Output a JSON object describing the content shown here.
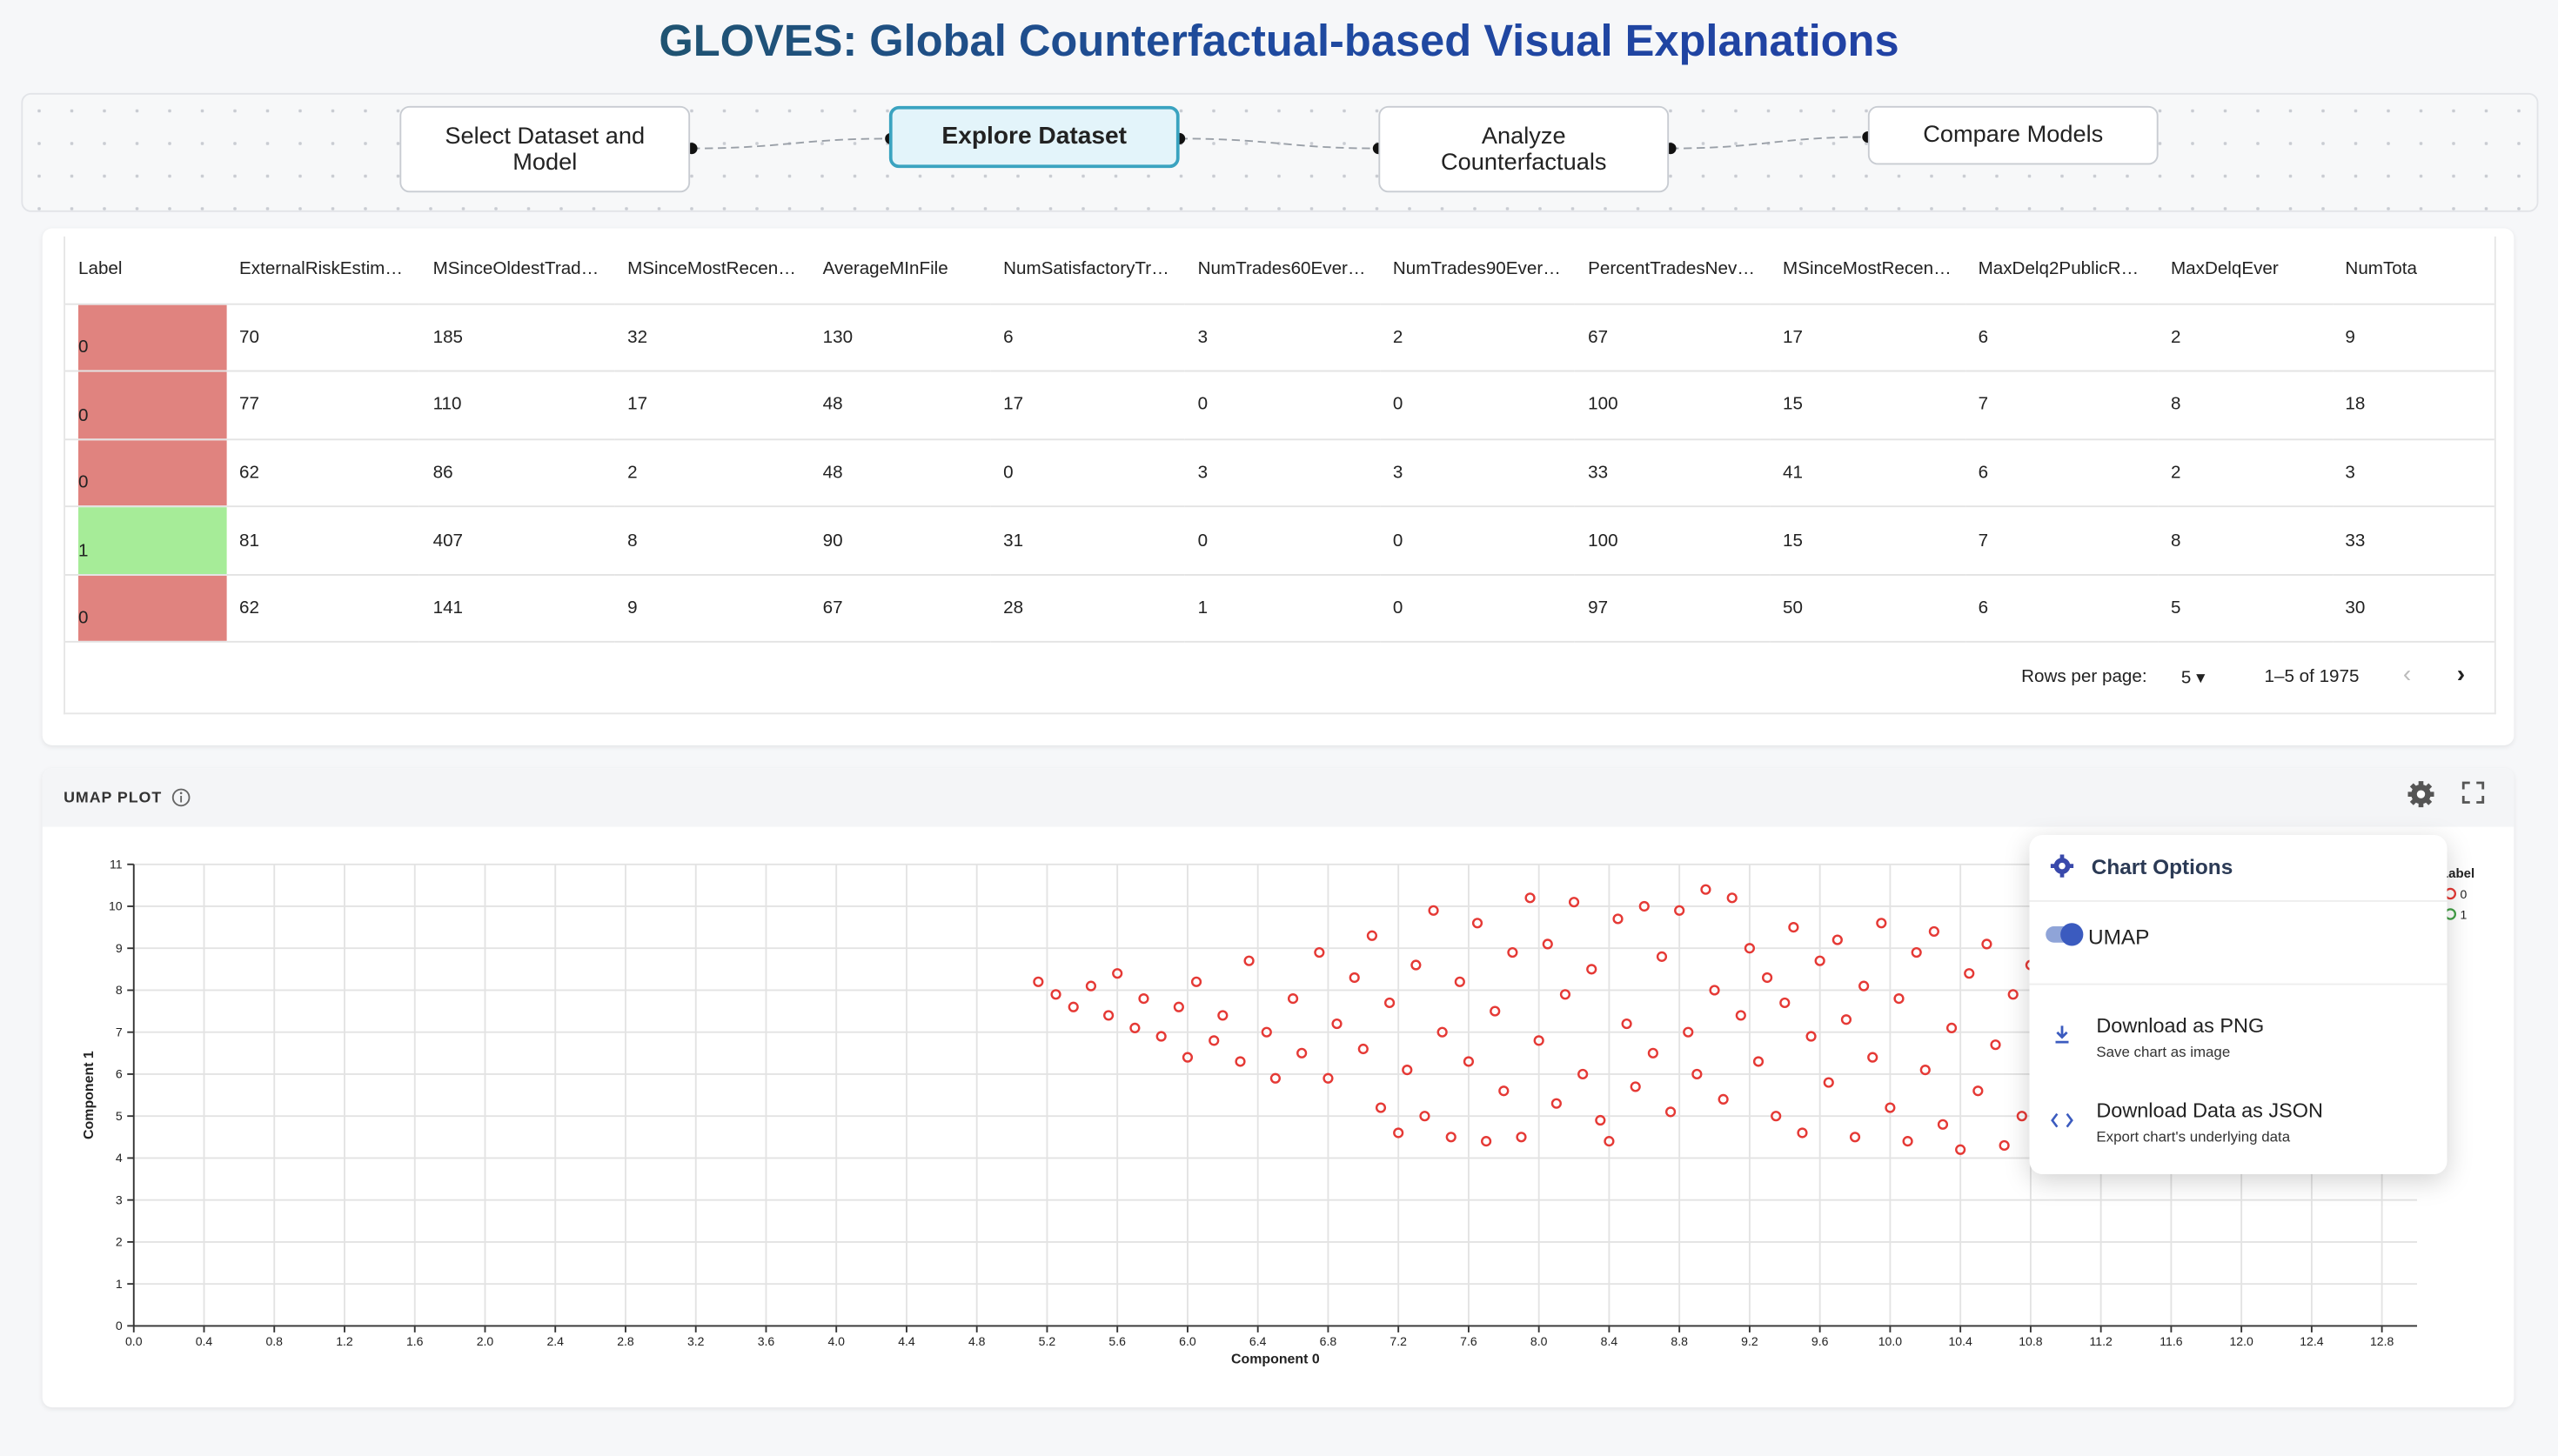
{
  "header": {
    "title": "GLOVES: Global Counterfactual-based Visual Explanations"
  },
  "steps": [
    "Select Dataset and Model",
    "Explore Dataset",
    "Analyze Counterfactuals",
    "Compare Models"
  ],
  "table": {
    "columns": [
      "Label",
      "ExternalRiskEstim…",
      "MSinceOldestTrad…",
      "MSinceMostRecen…",
      "AverageMInFile",
      "NumSatisfactoryTr…",
      "NumTrades60Ever…",
      "NumTrades90Ever…",
      "PercentTradesNev…",
      "MSinceMostRecen…",
      "MaxDelq2PublicR…",
      "MaxDelqEver",
      "NumTota"
    ],
    "rows": [
      [
        0,
        70,
        185,
        32,
        130,
        6,
        3,
        2,
        67,
        17,
        6,
        2,
        9
      ],
      [
        0,
        77,
        110,
        17,
        48,
        17,
        0,
        0,
        100,
        15,
        7,
        8,
        18
      ],
      [
        0,
        62,
        86,
        2,
        48,
        0,
        3,
        3,
        33,
        41,
        6,
        2,
        3
      ],
      [
        1,
        81,
        407,
        8,
        90,
        31,
        0,
        0,
        100,
        15,
        7,
        8,
        33
      ],
      [
        0,
        62,
        141,
        9,
        67,
        28,
        1,
        0,
        97,
        50,
        6,
        5,
        30
      ]
    ],
    "rows_per_page_label": "Rows per page:",
    "rows_per_page": 5,
    "range_label": "1–5 of 1975"
  },
  "panel": {
    "title": "UMAP PLOT"
  },
  "menu": {
    "title": "Chart Options",
    "toggle": "UMAP",
    "items": [
      {
        "label": "Download as PNG",
        "sub": "Save chart as image"
      },
      {
        "label": "Download Data as JSON",
        "sub": "Export chart's underlying data"
      }
    ]
  },
  "chart_data": {
    "type": "scatter",
    "xlabel": "Component 0",
    "ylabel": "Component 1",
    "legend_title": "Label",
    "grid": true,
    "xlim": [
      0,
      13
    ],
    "ylim": [
      0,
      11
    ],
    "xticks": [
      {
        "value": 0,
        "label": "0.0"
      },
      0.4,
      0.8,
      1.2,
      1.6,
      {
        "value": 2,
        "label": "2.0"
      },
      2.4,
      2.8,
      3.2,
      3.6,
      {
        "value": 4,
        "label": "4.0"
      },
      4.4,
      4.8,
      5.2,
      5.6,
      {
        "value": 6,
        "label": "6.0"
      },
      6.4,
      6.8,
      7.2,
      7.6,
      {
        "value": 8,
        "label": "8.0"
      },
      8.4,
      8.8,
      9.2,
      9.6,
      {
        "value": 10,
        "label": "10.0"
      },
      10.4,
      10.8,
      11.2,
      11.6,
      {
        "value": 12,
        "label": "12.0"
      },
      12.4,
      12.8
    ],
    "yticks": [
      0,
      1,
      2,
      3,
      4,
      5,
      6,
      7,
      8,
      9,
      10,
      11
    ],
    "series": [
      {
        "name": "0",
        "color": "#e53935",
        "x": [
          5.15,
          5.25,
          5.35,
          5.45,
          5.55,
          5.6,
          5.7,
          5.75,
          5.85,
          5.95,
          6.0,
          6.05,
          6.15,
          6.2,
          6.3,
          6.35,
          6.45,
          6.5,
          6.6,
          6.65,
          6.75,
          6.8,
          6.85,
          6.95,
          7.0,
          7.05,
          7.1,
          7.15,
          7.2,
          7.25,
          7.3,
          7.35,
          7.4,
          7.45,
          7.5,
          7.55,
          7.6,
          7.65,
          7.7,
          7.75,
          7.8,
          7.85,
          7.9,
          7.95,
          8.0,
          8.05,
          8.1,
          8.15,
          8.2,
          8.25,
          8.3,
          8.35,
          8.4,
          8.45,
          8.5,
          8.55,
          8.6,
          8.65,
          8.7,
          8.75,
          8.8,
          8.85,
          8.9,
          8.95,
          9.0,
          9.05,
          9.1,
          9.15,
          9.2,
          9.25,
          9.3,
          9.35,
          9.4,
          9.45,
          9.5,
          9.55,
          9.6,
          9.65,
          9.7,
          9.75,
          9.8,
          9.85,
          9.9,
          9.95,
          10.0,
          10.05,
          10.1,
          10.15,
          10.2,
          10.25,
          10.3,
          10.35,
          10.4,
          10.45,
          10.5,
          10.55,
          10.6,
          10.65,
          10.7,
          10.75,
          10.8
        ],
        "values": [
          8.2,
          7.9,
          7.6,
          8.1,
          7.4,
          8.4,
          7.1,
          7.8,
          6.9,
          7.6,
          6.4,
          8.2,
          6.8,
          7.4,
          6.3,
          8.7,
          7.0,
          5.9,
          7.8,
          6.5,
          8.9,
          5.9,
          7.2,
          8.3,
          6.6,
          9.3,
          5.2,
          7.7,
          4.6,
          6.1,
          8.6,
          5.0,
          9.9,
          7.0,
          4.5,
          8.2,
          6.3,
          9.6,
          4.4,
          7.5,
          5.6,
          8.9,
          4.5,
          10.2,
          6.8,
          9.1,
          5.3,
          7.9,
          10.1,
          6.0,
          8.5,
          4.9,
          4.4,
          9.7,
          7.2,
          5.7,
          10.0,
          6.5,
          8.8,
          5.1,
          9.9,
          7.0,
          6.0,
          10.4,
          8.0,
          5.4,
          10.2,
          7.4,
          9.0,
          6.3,
          8.3,
          5.0,
          7.7,
          9.5,
          4.6,
          6.9,
          8.7,
          5.8,
          9.2,
          7.3,
          4.5,
          8.1,
          6.4,
          9.6,
          5.2,
          7.8,
          4.4,
          8.9,
          6.1,
          9.4,
          4.8,
          7.1,
          4.2,
          8.4,
          5.6,
          9.1,
          6.7,
          4.3,
          7.9,
          5.0,
          8.6
        ]
      },
      {
        "name": "1",
        "color": "#43a047",
        "x": [],
        "values": []
      }
    ]
  }
}
